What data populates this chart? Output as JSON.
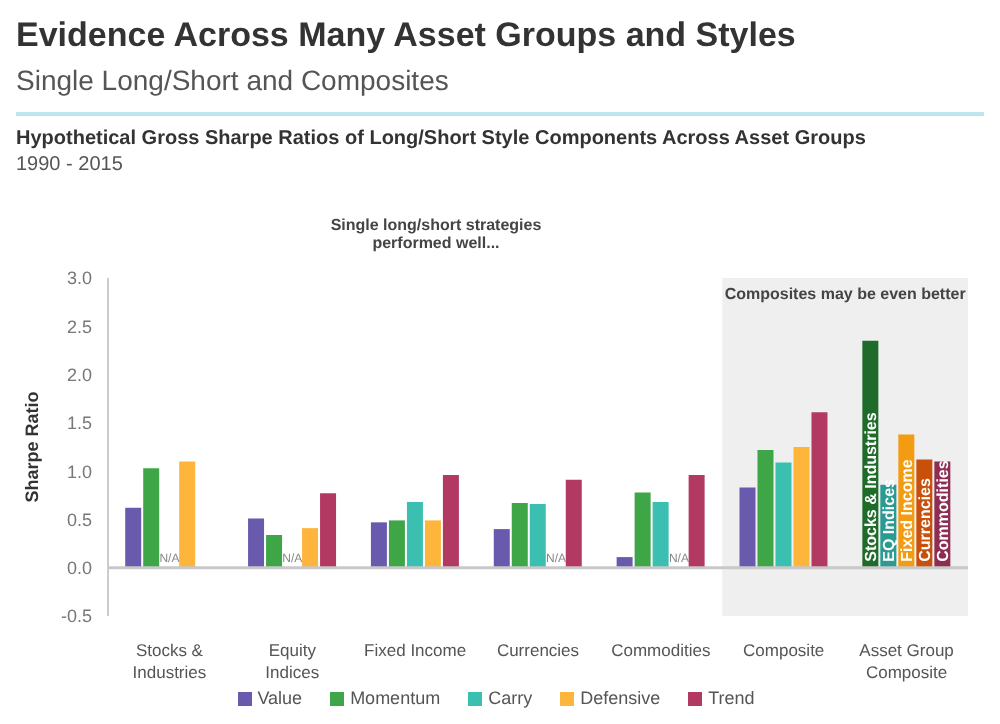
{
  "chart_data": {
    "type": "bar",
    "title": "Evidence Across Many Asset Groups and Styles",
    "subtitle": "Single Long/Short and Composites",
    "annotations": [
      "Hypothetical Gross Sharpe Ratios of Long/Short Style Components Across Asset Groups",
      "1990 - 2015",
      "Single long/short strategies performed well...",
      "Stocks & Industries",
      "EQ Indices",
      "Fixed Income",
      "Currencies",
      "Commodities"
    ],
    "ylabel": "Sharpe Ratio",
    "categories": [
      "Stocks & Industries",
      "Equity Indices",
      "Fixed Income",
      "Currencies",
      "Commodities",
      "Composite",
      "Asset Group Composite"
    ],
    "series": [
      {
        "name": "Value",
        "color": "#6a5aad",
        "colors": [
          "#6a5aad",
          "#6a5aad",
          "#6a5aad",
          "#6a5aad",
          "#6a5aad",
          "#6a5aad",
          "#1e6b2a"
        ],
        "values": [
          0.62,
          0.51,
          0.47,
          0.4,
          0.11,
          0.83,
          2.35
        ],
        "value_labels": [
          null,
          null,
          null,
          null,
          null,
          null,
          null
        ]
      },
      {
        "name": "Momentum",
        "color": "#3fa648",
        "colors": [
          "#3fa648",
          "#3fa648",
          "#3fa648",
          "#3fa648",
          "#3fa648",
          "#3fa648",
          "#2a9a93"
        ],
        "values": [
          1.03,
          0.34,
          0.49,
          0.67,
          0.78,
          1.22,
          0.86
        ],
        "value_labels": [
          null,
          null,
          null,
          null,
          null,
          null,
          null
        ]
      },
      {
        "name": "Carry",
        "color": "#3bbfb0",
        "colors": [
          "#3bbfb0",
          "#3bbfb0",
          "#3bbfb0",
          "#3bbfb0",
          "#3bbfb0",
          "#3bbfb0",
          "#f39c12"
        ],
        "values": [
          null,
          null,
          0.68,
          0.66,
          0.68,
          1.09,
          1.38
        ],
        "value_labels": [
          "N/A",
          "N/A",
          null,
          null,
          null,
          null,
          null
        ]
      },
      {
        "name": "Defensive",
        "color": "#fdb53c",
        "colors": [
          "#fdb53c",
          "#fdb53c",
          "#fdb53c",
          "#fdb53c",
          "#fdb53c",
          "#fdb53c",
          "#c8500a"
        ],
        "values": [
          1.1,
          0.41,
          0.49,
          null,
          null,
          1.25,
          1.12
        ],
        "value_labels": [
          null,
          null,
          null,
          "N/A",
          "N/A",
          null,
          null
        ]
      },
      {
        "name": "Trend",
        "color": "#b23a62",
        "colors": [
          "#b23a62",
          "#b23a62",
          "#b23a62",
          "#b23a62",
          "#b23a62",
          "#b23a62",
          "#8e2d52"
        ],
        "values": [
          null,
          0.77,
          0.96,
          0.91,
          0.96,
          1.61,
          1.1
        ],
        "value_labels": [
          null,
          null,
          null,
          null,
          null,
          null,
          null
        ]
      }
    ],
    "ylim": [
      -0.5,
      3.0
    ],
    "yticks": [
      -0.5,
      {
        "value": 0,
        "label": "0.0"
      },
      0.5,
      {
        "value": 1,
        "label": "1.0"
      },
      1.5,
      {
        "value": 2,
        "label": "2.0"
      },
      2.5,
      {
        "value": 3,
        "label": "3.0"
      }
    ],
    "ref_lines": [
      {
        "axis": "y",
        "value": 0,
        "color": "#c8c8c8"
      }
    ],
    "bands": [
      {
        "axis": "x",
        "from": "Composite",
        "to": "Asset Group Composite",
        "label": "Composites may be even better",
        "color": "#efefef"
      }
    ],
    "grid": false,
    "legend": "bottom"
  }
}
